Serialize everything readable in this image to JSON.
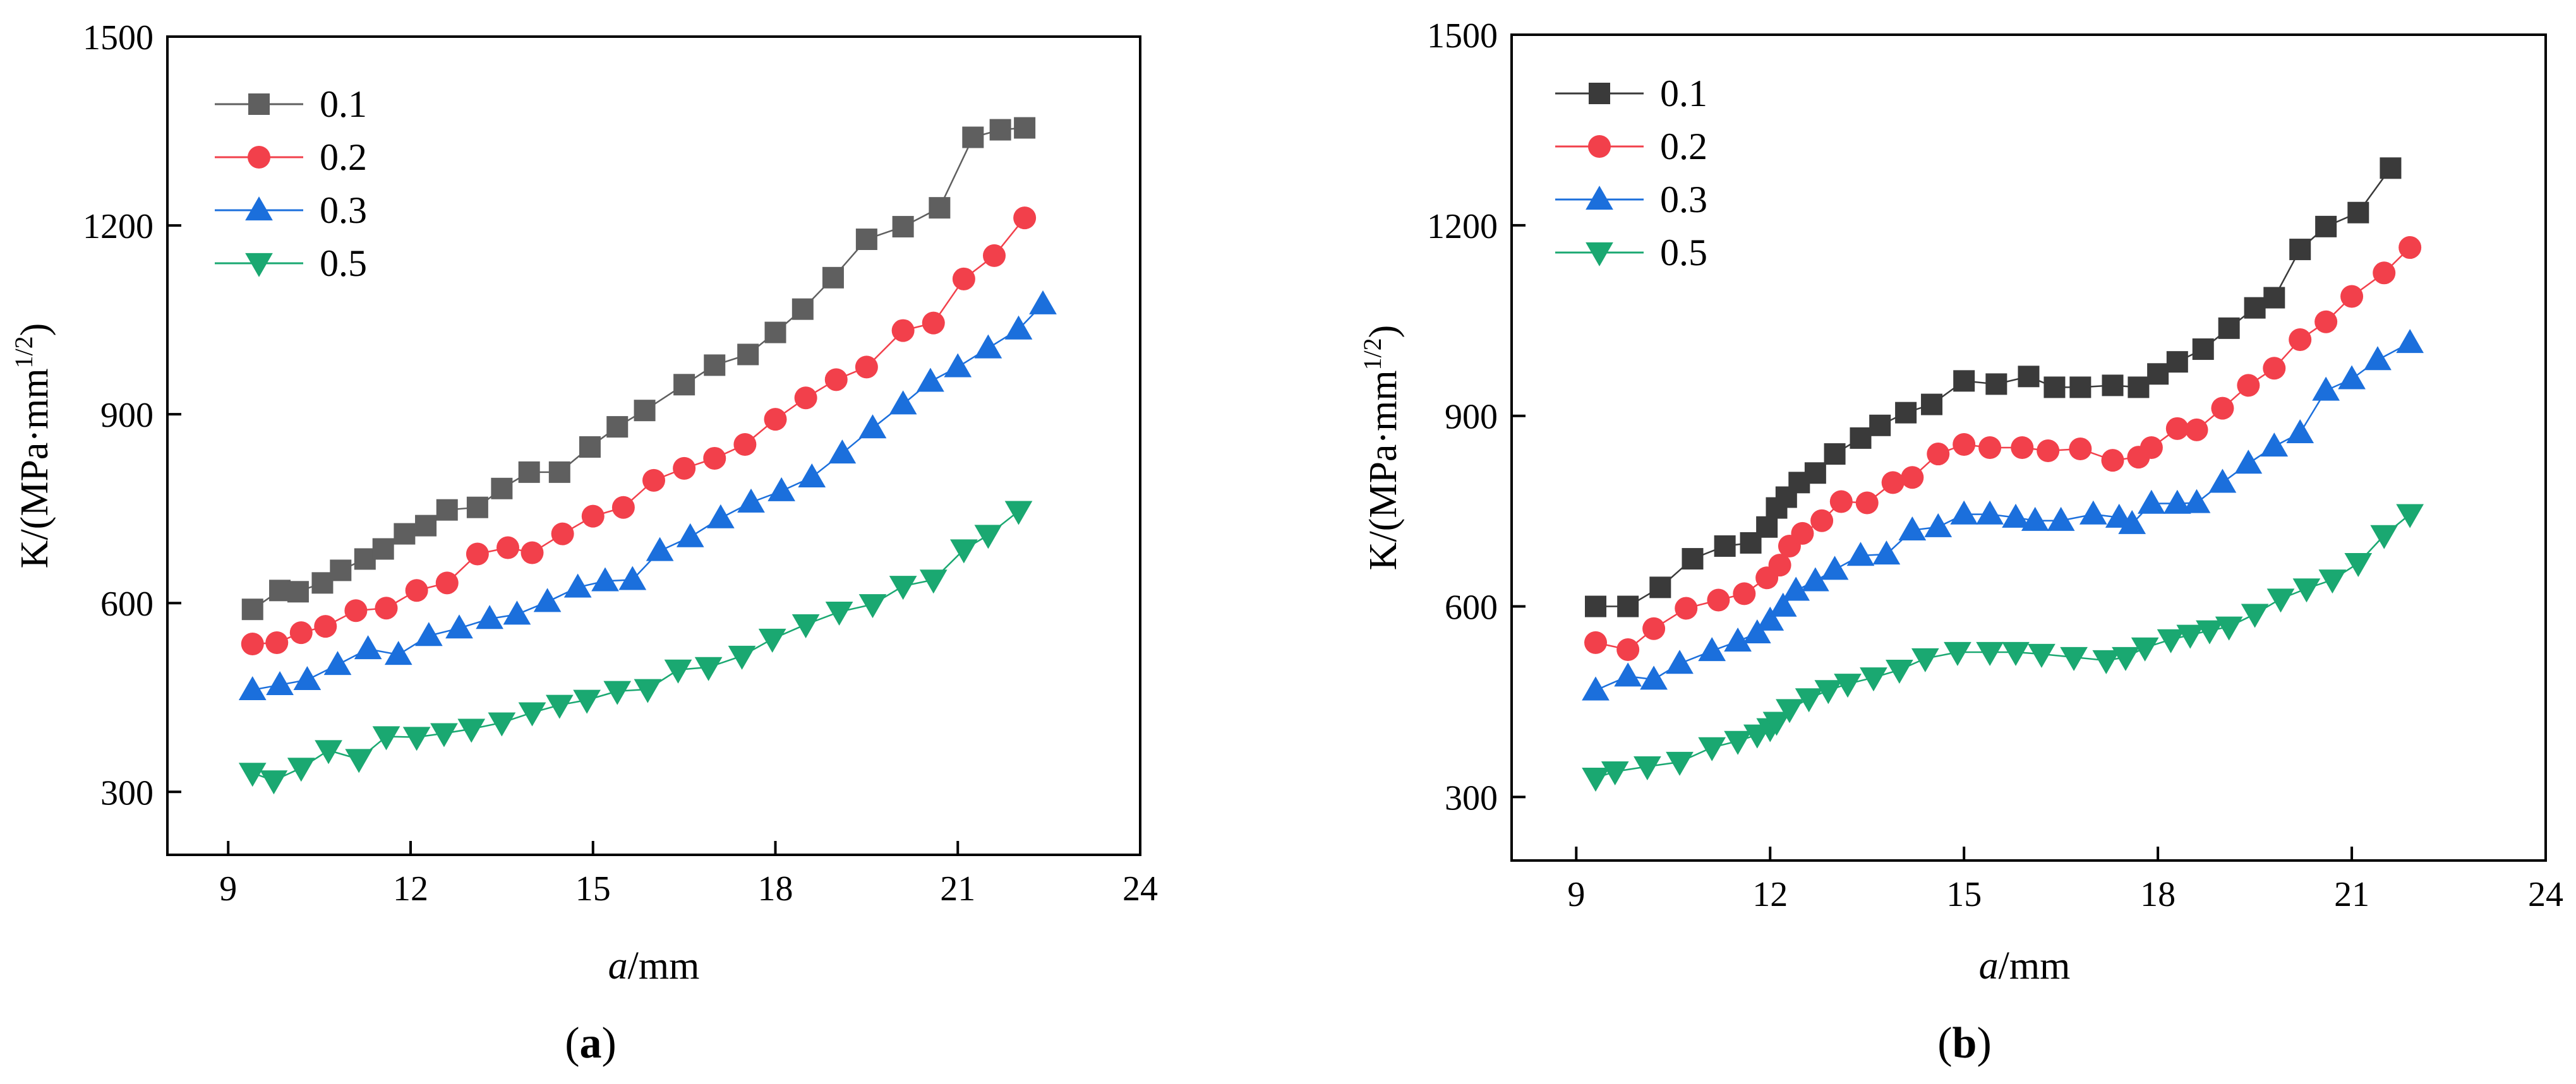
{
  "chart_data": [
    {
      "type": "line",
      "panel_label": "a",
      "title": "",
      "xlabel": "mm",
      "xlabel_italic_prefix": "a",
      "xlabel_sep": "/",
      "ylabel": "K/(MPa·mm",
      "ylabel_sup": "1/2",
      "ylabel_close": ")",
      "xlim": [
        8,
        24
      ],
      "ylim": [
        200,
        1500
      ],
      "xticks": [
        "9",
        "12",
        "15",
        "18",
        "21",
        "24"
      ],
      "yticks": [
        "300",
        "600",
        "900",
        "1200",
        "1500"
      ],
      "legend": "top-left",
      "series": [
        {
          "name": "0.1",
          "marker": "square",
          "color": "#5f5f5f",
          "x": [
            9.4,
            9.85,
            10.15,
            10.55,
            10.85,
            11.25,
            11.55,
            11.9,
            12.25,
            12.6,
            13.1,
            13.5,
            13.95,
            14.45,
            14.95,
            15.4,
            15.85,
            16.5,
            17.0,
            17.55,
            18.0,
            18.45,
            18.95,
            19.5,
            20.1,
            20.7,
            21.25,
            21.7,
            22.1
          ],
          "y": [
            590,
            620,
            618,
            632,
            652,
            670,
            686,
            710,
            723,
            748,
            752,
            782,
            808,
            808,
            848,
            880,
            906,
            947,
            978,
            995,
            1030,
            1067,
            1117,
            1178,
            1198,
            1228,
            1340,
            1352,
            1355
          ]
        },
        {
          "name": "0.2",
          "marker": "circle",
          "color": "#f2404b",
          "x": [
            9.4,
            9.8,
            10.2,
            10.6,
            11.1,
            11.6,
            12.1,
            12.6,
            13.1,
            13.6,
            14.0,
            14.5,
            15.0,
            15.5,
            16.0,
            16.5,
            17.0,
            17.5,
            18.0,
            18.5,
            19.0,
            19.5,
            20.1,
            20.6,
            21.1,
            21.6,
            22.1
          ],
          "y": [
            535,
            537,
            553,
            563,
            588,
            592,
            620,
            632,
            678,
            688,
            680,
            710,
            738,
            752,
            795,
            814,
            830,
            852,
            892,
            926,
            955,
            975,
            1033,
            1045,
            1115,
            1152,
            1212
          ]
        },
        {
          "name": "0.3",
          "marker": "triangle-up",
          "color": "#1b6fdc",
          "x": [
            9.4,
            9.85,
            10.3,
            10.8,
            11.3,
            11.8,
            12.3,
            12.8,
            13.3,
            13.75,
            14.25,
            14.75,
            15.2,
            15.65,
            16.1,
            16.6,
            17.1,
            17.6,
            18.1,
            18.6,
            19.1,
            19.6,
            20.1,
            20.55,
            21.0,
            21.5,
            22.0,
            22.4
          ],
          "y": [
            462,
            470,
            478,
            502,
            527,
            518,
            548,
            560,
            575,
            582,
            602,
            625,
            635,
            637,
            683,
            705,
            735,
            760,
            778,
            800,
            838,
            878,
            916,
            952,
            975,
            1005,
            1035,
            1075
          ]
        },
        {
          "name": "0.5",
          "marker": "triangle-down",
          "color": "#1aa871",
          "x": [
            9.4,
            9.75,
            10.2,
            10.65,
            11.15,
            11.6,
            12.1,
            12.55,
            13.0,
            13.5,
            14.0,
            14.45,
            14.9,
            15.4,
            15.9,
            16.4,
            16.9,
            17.45,
            17.95,
            18.5,
            19.05,
            19.6,
            20.1,
            20.6,
            21.1,
            21.5,
            22.0
          ],
          "y": [
            330,
            318,
            338,
            366,
            352,
            388,
            387,
            393,
            400,
            410,
            426,
            438,
            446,
            460,
            463,
            494,
            498,
            516,
            543,
            566,
            586,
            598,
            627,
            637,
            685,
            708,
            746
          ]
        }
      ]
    },
    {
      "type": "line",
      "panel_label": "b",
      "title": "",
      "xlabel": "mm",
      "xlabel_italic_prefix": "a",
      "xlabel_sep": "/",
      "ylabel": "K/(MPa·mm",
      "ylabel_sup": "1/2",
      "ylabel_close": ")",
      "xlim": [
        8,
        24
      ],
      "ylim": [
        200,
        1500
      ],
      "xticks": [
        "9",
        "12",
        "15",
        "18",
        "21",
        "24"
      ],
      "yticks": [
        "300",
        "600",
        "900",
        "1200",
        "1500"
      ],
      "legend": "top-left",
      "series": [
        {
          "name": "0.1",
          "marker": "square",
          "color": "#3a3a3a",
          "x": [
            9.3,
            9.8,
            10.3,
            10.8,
            11.3,
            11.7,
            11.95,
            12.1,
            12.25,
            12.45,
            12.7,
            13.0,
            13.4,
            13.7,
            14.1,
            14.5,
            15.0,
            15.5,
            16.0,
            16.4,
            16.8,
            17.3,
            17.7,
            18.0,
            18.3,
            18.7,
            19.1,
            19.5,
            19.8,
            20.2,
            20.6,
            21.1,
            21.6
          ],
          "y": [
            600,
            600,
            630,
            675,
            695,
            700,
            725,
            755,
            772,
            795,
            810,
            840,
            865,
            885,
            905,
            918,
            955,
            950,
            962,
            945,
            945,
            948,
            945,
            966,
            985,
            1005,
            1038,
            1070,
            1086,
            1162,
            1198,
            1220,
            1290
          ]
        },
        {
          "name": "0.2",
          "marker": "circle",
          "color": "#f2404b",
          "x": [
            9.3,
            9.8,
            10.2,
            10.7,
            11.2,
            11.6,
            11.95,
            12.15,
            12.3,
            12.5,
            12.8,
            13.1,
            13.5,
            13.9,
            14.2,
            14.6,
            15.0,
            15.4,
            15.9,
            16.3,
            16.8,
            17.3,
            17.7,
            17.9,
            18.3,
            18.6,
            19.0,
            19.4,
            19.8,
            20.2,
            20.6,
            21.0,
            21.5,
            21.9
          ],
          "y": [
            543,
            532,
            565,
            597,
            610,
            620,
            645,
            665,
            695,
            715,
            735,
            765,
            763,
            795,
            803,
            840,
            855,
            850,
            850,
            845,
            848,
            830,
            835,
            850,
            880,
            878,
            912,
            948,
            975,
            1020,
            1048,
            1088,
            1125,
            1165
          ]
        },
        {
          "name": "0.3",
          "marker": "triangle-up",
          "color": "#1b6fdc",
          "x": [
            9.3,
            9.8,
            10.2,
            10.6,
            11.1,
            11.5,
            11.8,
            12.0,
            12.2,
            12.4,
            12.7,
            13.0,
            13.4,
            13.8,
            14.2,
            14.6,
            15.0,
            15.4,
            15.8,
            16.1,
            16.5,
            17.0,
            17.4,
            17.6,
            17.9,
            18.3,
            18.6,
            19.0,
            19.4,
            19.8,
            20.2,
            20.6,
            21.0,
            21.4,
            21.9
          ],
          "y": [
            468,
            490,
            485,
            510,
            530,
            545,
            558,
            578,
            600,
            625,
            640,
            658,
            680,
            682,
            720,
            725,
            745,
            745,
            740,
            735,
            735,
            745,
            740,
            730,
            762,
            762,
            763,
            795,
            825,
            852,
            873,
            940,
            958,
            988,
            1015
          ]
        },
        {
          "name": "0.5",
          "marker": "triangle-down",
          "color": "#1aa871",
          "x": [
            9.3,
            9.6,
            10.1,
            10.6,
            11.1,
            11.5,
            11.8,
            12.0,
            12.1,
            12.3,
            12.6,
            12.9,
            13.2,
            13.6,
            14.0,
            14.4,
            14.9,
            15.4,
            15.8,
            16.2,
            16.7,
            17.2,
            17.5,
            17.8,
            18.2,
            18.5,
            18.8,
            19.1,
            19.5,
            19.9,
            20.3,
            20.7,
            21.1,
            21.5,
            21.9
          ],
          "y": [
            330,
            340,
            348,
            355,
            378,
            388,
            398,
            408,
            418,
            438,
            455,
            468,
            478,
            488,
            500,
            518,
            528,
            528,
            528,
            525,
            520,
            515,
            520,
            535,
            548,
            555,
            562,
            568,
            588,
            612,
            628,
            642,
            668,
            712,
            745
          ]
        }
      ]
    }
  ]
}
